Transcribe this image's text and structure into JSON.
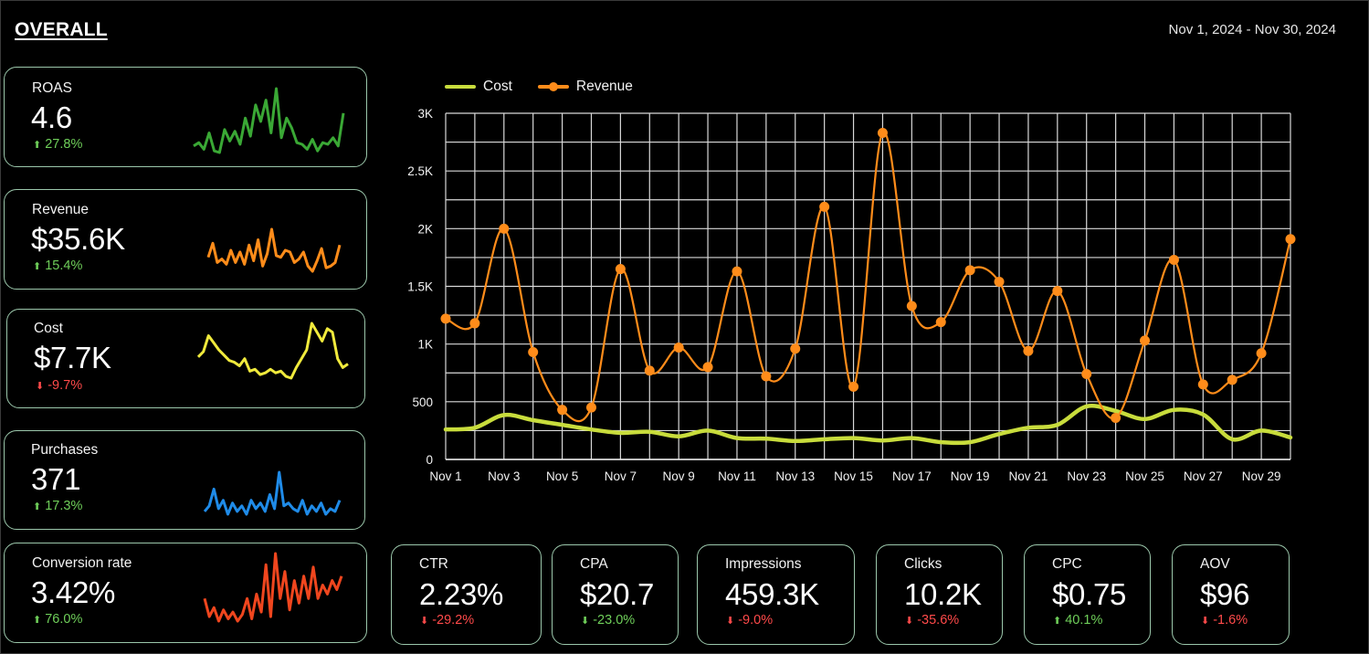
{
  "header": {
    "title": "OVERALL",
    "date_range": "Nov 1, 2024 - Nov 30, 2024"
  },
  "colors": {
    "card_border": "#9bc7ab",
    "positive": "#6fcf5a",
    "negative": "#ff4a4a",
    "cost": "#c8dc3c",
    "revenue": "#ff8c1a"
  },
  "side_kpis": [
    {
      "label": "ROAS",
      "value": "4.6",
      "change": "27.8%",
      "direction": "up",
      "sentiment": "positive",
      "spark_color": "#3aa835",
      "spark": [
        3.5,
        3.7,
        3.3,
        4.3,
        3.2,
        3.1,
        4.5,
        3.8,
        4.4,
        3.6,
        5.2,
        4.1,
        6.0,
        5.0,
        6.3,
        4.3,
        7.0,
        4.0,
        5.2,
        4.6,
        3.7,
        3.6,
        3.3,
        3.9,
        3.2,
        3.7,
        3.6,
        4.0,
        3.5,
        5.5
      ]
    },
    {
      "label": "Revenue",
      "value": "$35.6K",
      "change": "15.4%",
      "direction": "up",
      "sentiment": "positive",
      "spark_color": "#ff8c1a",
      "spark": [
        1.2,
        2.0,
        0.9,
        1.1,
        0.8,
        1.6,
        0.9,
        1.5,
        0.8,
        1.9,
        1.0,
        2.2,
        0.7,
        1.4,
        2.8,
        1.3,
        1.2,
        1.6,
        1.5,
        0.9,
        1.1,
        1.5,
        0.7,
        0.4,
        1.0,
        1.7,
        0.6,
        0.7,
        0.9,
        1.9
      ]
    },
    {
      "label": "Cost",
      "value": "$7.7K",
      "change": "-9.7%",
      "direction": "down",
      "sentiment": "negative",
      "spark_color": "#f0ea3c",
      "spark": [
        260,
        290,
        380,
        340,
        300,
        270,
        240,
        230,
        210,
        250,
        180,
        190,
        160,
        170,
        190,
        170,
        180,
        150,
        140,
        200,
        250,
        300,
        450,
        400,
        350,
        420,
        400,
        250,
        200,
        220
      ]
    },
    {
      "label": "Purchases",
      "value": "371",
      "change": "17.3%",
      "direction": "up",
      "sentiment": "positive",
      "spark_color": "#1f8be8",
      "spark": [
        10,
        12,
        18,
        11,
        14,
        9,
        13,
        10,
        12,
        9,
        14,
        11,
        13,
        10,
        16,
        11,
        24,
        12,
        13,
        11,
        10,
        14,
        9,
        12,
        10,
        13,
        9,
        11,
        10,
        14
      ]
    },
    {
      "label": "Conversion rate",
      "value": "3.42%",
      "change": "76.0%",
      "direction": "up",
      "sentiment": "positive",
      "spark_color": "#f0461e",
      "spark": [
        3.0,
        2.2,
        2.6,
        2.0,
        2.5,
        2.1,
        2.4,
        2.0,
        2.3,
        3.0,
        2.1,
        3.2,
        2.4,
        4.5,
        2.2,
        5.0,
        3.0,
        4.2,
        2.5,
        3.8,
        2.8,
        4.0,
        3.0,
        4.4,
        3.0,
        3.6,
        3.2,
        3.8,
        3.4,
        4.0
      ]
    }
  ],
  "bottom_kpis": [
    {
      "label": "CTR",
      "value": "2.23%",
      "change": "-29.2%",
      "direction": "down",
      "sentiment": "negative"
    },
    {
      "label": "CPA",
      "value": "$20.7",
      "change": "-23.0%",
      "direction": "down",
      "sentiment": "positive"
    },
    {
      "label": "Impressions",
      "value": "459.3K",
      "change": "-9.0%",
      "direction": "down",
      "sentiment": "negative"
    },
    {
      "label": "Clicks",
      "value": "10.2K",
      "change": "-35.6%",
      "direction": "down",
      "sentiment": "negative"
    },
    {
      "label": "CPC",
      "value": "$0.75",
      "change": "40.1%",
      "direction": "up",
      "sentiment": "positive"
    },
    {
      "label": "AOV",
      "value": "$96",
      "change": "-1.6%",
      "direction": "down",
      "sentiment": "negative"
    }
  ],
  "chart_data": {
    "type": "line",
    "x": [
      "Nov 1",
      "Nov 2",
      "Nov 3",
      "Nov 4",
      "Nov 5",
      "Nov 6",
      "Nov 7",
      "Nov 8",
      "Nov 9",
      "Nov 10",
      "Nov 11",
      "Nov 12",
      "Nov 13",
      "Nov 14",
      "Nov 15",
      "Nov 16",
      "Nov 17",
      "Nov 18",
      "Nov 19",
      "Nov 20",
      "Nov 21",
      "Nov 22",
      "Nov 23",
      "Nov 24",
      "Nov 25",
      "Nov 26",
      "Nov 27",
      "Nov 28",
      "Nov 29",
      "Nov 30"
    ],
    "x_tick_labels": [
      "Nov 1",
      "Nov 3",
      "Nov 5",
      "Nov 7",
      "Nov 9",
      "Nov 11",
      "Nov 13",
      "Nov 15",
      "Nov 17",
      "Nov 19",
      "Nov 21",
      "Nov 23",
      "Nov 25",
      "Nov 27",
      "Nov 29"
    ],
    "y_ticks": [
      0,
      500,
      1000,
      1500,
      2000,
      2500,
      3000
    ],
    "y_tick_labels": [
      "0",
      "500",
      "1K",
      "1.5K",
      "2K",
      "2.5K",
      "3K"
    ],
    "ylim": [
      0,
      3000
    ],
    "grid": true,
    "legend_position": "top-left",
    "series": [
      {
        "name": "Cost",
        "color": "#c8dc3c",
        "markers": false,
        "values": [
          260,
          275,
          385,
          340,
          300,
          260,
          230,
          240,
          200,
          250,
          185,
          180,
          160,
          175,
          185,
          165,
          185,
          150,
          150,
          220,
          275,
          300,
          460,
          420,
          350,
          430,
          390,
          175,
          250,
          190
        ]
      },
      {
        "name": "Revenue",
        "color": "#ff8c1a",
        "markers": true,
        "values": [
          1220,
          1180,
          2000,
          930,
          430,
          450,
          1650,
          770,
          970,
          800,
          1630,
          720,
          960,
          2190,
          630,
          2830,
          1330,
          1190,
          1640,
          1540,
          940,
          1460,
          740,
          360,
          1030,
          1730,
          650,
          690,
          920,
          1910
        ]
      }
    ]
  }
}
